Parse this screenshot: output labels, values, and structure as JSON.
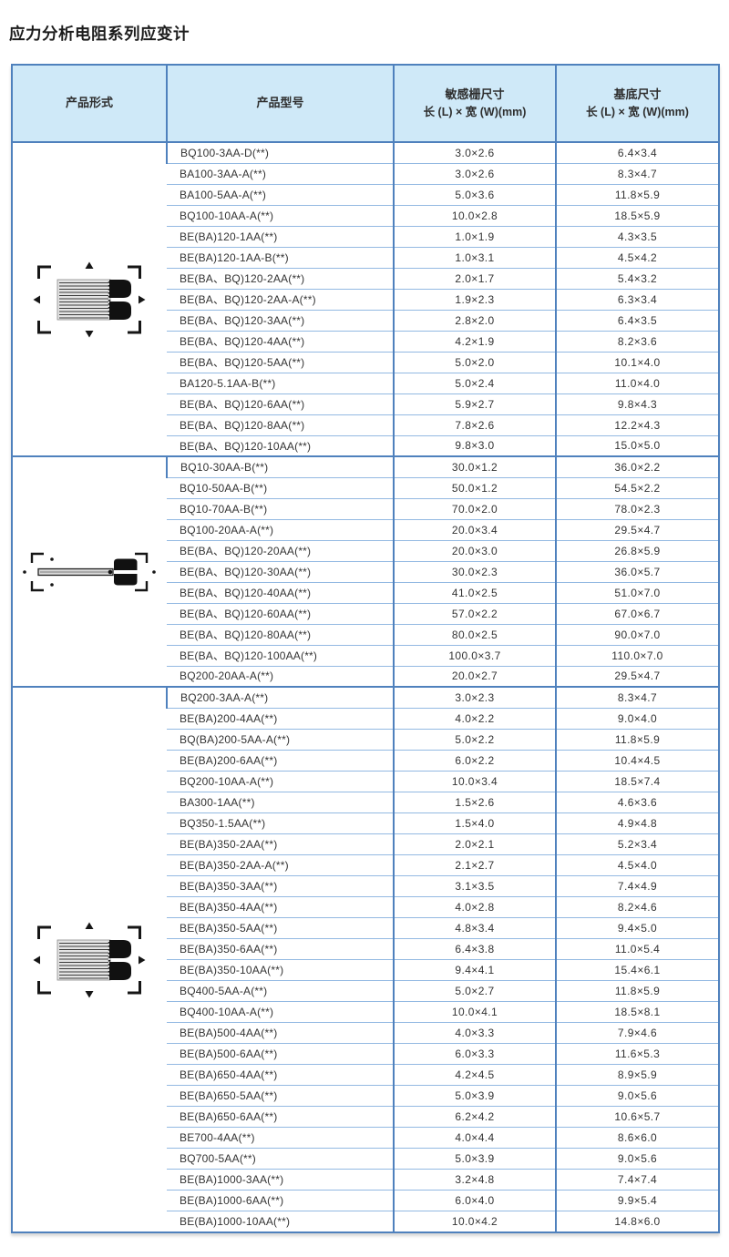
{
  "title": "应力分析电阻系列应变计",
  "colors": {
    "header_bg": "#cfe9f8",
    "border_strong": "#4f81bd",
    "border_light": "#93b9e2",
    "text": "#333333"
  },
  "table": {
    "headers": {
      "product_form": "产品形式",
      "product_model": "产品型号",
      "grid_size_title": "敏感栅尺寸",
      "grid_size_sub": "长 (L) × 宽 (W)(mm)",
      "base_size_title": "基底尺寸",
      "base_size_sub": "长 (L) × 宽 (W)(mm)"
    },
    "sections": [
      {
        "image": "foil-grid-gauge",
        "rows": [
          [
            "BQ100-3AA-D(**)",
            "3.0×2.6",
            "6.4×3.4"
          ],
          [
            "BA100-3AA-A(**)",
            "3.0×2.6",
            "8.3×4.7"
          ],
          [
            "BA100-5AA-A(**)",
            "5.0×3.6",
            "11.8×5.9"
          ],
          [
            "BQ100-10AA-A(**)",
            "10.0×2.8",
            "18.5×5.9"
          ],
          [
            "BE(BA)120-1AA(**)",
            "1.0×1.9",
            "4.3×3.5"
          ],
          [
            "BE(BA)120-1AA-B(**)",
            "1.0×3.1",
            "4.5×4.2"
          ],
          [
            "BE(BA、BQ)120-2AA(**)",
            "2.0×1.7",
            "5.4×3.2"
          ],
          [
            "BE(BA、BQ)120-2AA-A(**)",
            "1.9×2.3",
            "6.3×3.4"
          ],
          [
            "BE(BA、BQ)120-3AA(**)",
            "2.8×2.0",
            "6.4×3.5"
          ],
          [
            "BE(BA、BQ)120-4AA(**)",
            "4.2×1.9",
            "8.2×3.6"
          ],
          [
            "BE(BA、BQ)120-5AA(**)",
            "5.0×2.0",
            "10.1×4.0"
          ],
          [
            "BA120-5.1AA-B(**)",
            "5.0×2.4",
            "11.0×4.0"
          ],
          [
            "BE(BA、BQ)120-6AA(**)",
            "5.9×2.7",
            "9.8×4.3"
          ],
          [
            "BE(BA、BQ)120-8AA(**)",
            "7.8×2.6",
            "12.2×4.3"
          ],
          [
            "BE(BA、BQ)120-10AA(**)",
            "9.8×3.0",
            "15.0×5.0"
          ]
        ]
      },
      {
        "image": "long-strip-gauge",
        "rows": [
          [
            "BQ10-30AA-B(**)",
            "30.0×1.2",
            "36.0×2.2"
          ],
          [
            "BQ10-50AA-B(**)",
            "50.0×1.2",
            "54.5×2.2"
          ],
          [
            "BQ10-70AA-B(**)",
            "70.0×2.0",
            "78.0×2.3"
          ],
          [
            "BQ100-20AA-A(**)",
            "20.0×3.4",
            "29.5×4.7"
          ],
          [
            "BE(BA、BQ)120-20AA(**)",
            "20.0×3.0",
            "26.8×5.9"
          ],
          [
            "BE(BA、BQ)120-30AA(**)",
            "30.0×2.3",
            "36.0×5.7"
          ],
          [
            "BE(BA、BQ)120-40AA(**)",
            "41.0×2.5",
            "51.0×7.0"
          ],
          [
            "BE(BA、BQ)120-60AA(**)",
            "57.0×2.2",
            "67.0×6.7"
          ],
          [
            "BE(BA、BQ)120-80AA(**)",
            "80.0×2.5",
            "90.0×7.0"
          ],
          [
            "BE(BA、BQ)120-100AA(**)",
            "100.0×3.7",
            "110.0×7.0"
          ],
          [
            "BQ200-20AA-A(**)",
            "20.0×2.7",
            "29.5×4.7"
          ]
        ]
      },
      {
        "image": "foil-grid-gauge",
        "rows": [
          [
            "BQ200-3AA-A(**)",
            "3.0×2.3",
            "8.3×4.7"
          ],
          [
            "BE(BA)200-4AA(**)",
            "4.0×2.2",
            "9.0×4.0"
          ],
          [
            "BQ(BA)200-5AA-A(**)",
            "5.0×2.2",
            "11.8×5.9"
          ],
          [
            "BE(BA)200-6AA(**)",
            "6.0×2.2",
            "10.4×4.5"
          ],
          [
            "BQ200-10AA-A(**)",
            "10.0×3.4",
            "18.5×7.4"
          ],
          [
            "BA300-1AA(**)",
            "1.5×2.6",
            "4.6×3.6"
          ],
          [
            "BQ350-1.5AA(**)",
            "1.5×4.0",
            "4.9×4.8"
          ],
          [
            "BE(BA)350-2AA(**)",
            "2.0×2.1",
            "5.2×3.4"
          ],
          [
            "BE(BA)350-2AA-A(**)",
            "2.1×2.7",
            "4.5×4.0"
          ],
          [
            "BE(BA)350-3AA(**)",
            "3.1×3.5",
            "7.4×4.9"
          ],
          [
            "BE(BA)350-4AA(**)",
            "4.0×2.8",
            "8.2×4.6"
          ],
          [
            "BE(BA)350-5AA(**)",
            "4.8×3.4",
            "9.4×5.0"
          ],
          [
            "BE(BA)350-6AA(**)",
            "6.4×3.8",
            "11.0×5.4"
          ],
          [
            "BE(BA)350-10AA(**)",
            "9.4×4.1",
            "15.4×6.1"
          ],
          [
            "BQ400-5AA-A(**)",
            "5.0×2.7",
            "11.8×5.9"
          ],
          [
            "BQ400-10AA-A(**)",
            "10.0×4.1",
            "18.5×8.1"
          ],
          [
            "BE(BA)500-4AA(**)",
            "4.0×3.3",
            "7.9×4.6"
          ],
          [
            "BE(BA)500-6AA(**)",
            "6.0×3.3",
            "11.6×5.3"
          ],
          [
            "BE(BA)650-4AA(**)",
            "4.2×4.5",
            "8.9×5.9"
          ],
          [
            "BE(BA)650-5AA(**)",
            "5.0×3.9",
            "9.0×5.6"
          ],
          [
            "BE(BA)650-6AA(**)",
            "6.2×4.2",
            "10.6×5.7"
          ],
          [
            "BE700-4AA(**)",
            "4.0×4.4",
            "8.6×6.0"
          ],
          [
            "BQ700-5AA(**)",
            "5.0×3.9",
            "9.0×5.6"
          ],
          [
            "BE(BA)1000-3AA(**)",
            "3.2×4.8",
            "7.4×7.4"
          ],
          [
            "BE(BA)1000-6AA(**)",
            "6.0×4.0",
            "9.9×5.4"
          ],
          [
            "BE(BA)1000-10AA(**)",
            "10.0×4.2",
            "14.8×6.0"
          ]
        ]
      }
    ]
  }
}
